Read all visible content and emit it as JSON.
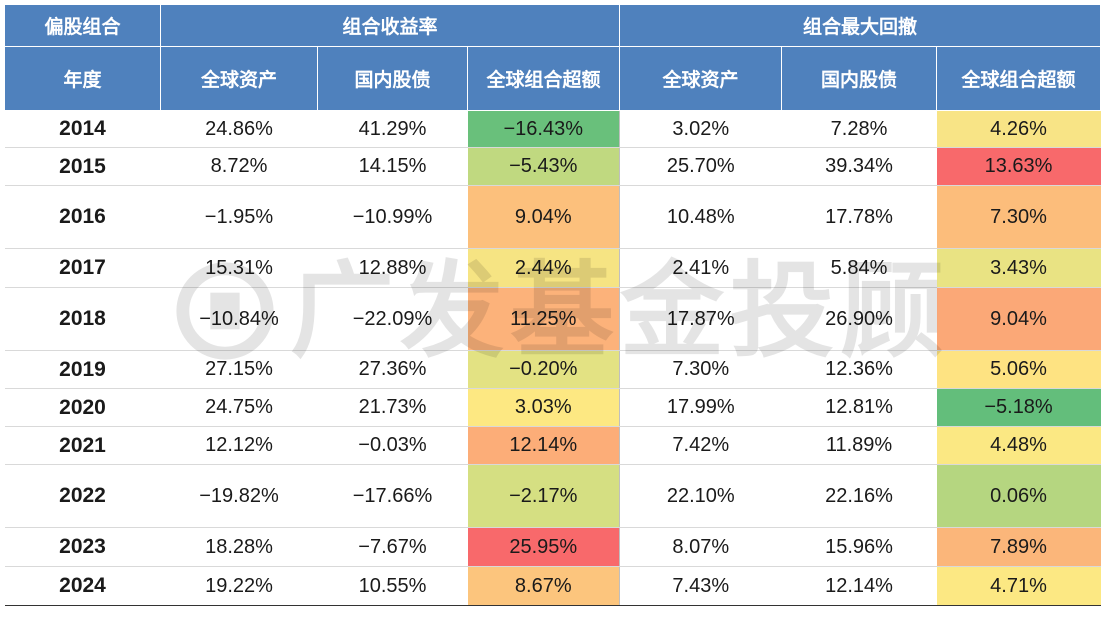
{
  "header": {
    "corner": "偏股组合",
    "group_return": "组合收益率",
    "group_drawdown": "组合最大回撤",
    "year_label": "年度",
    "columns": [
      "全球资产",
      "国内股债",
      "全球组合超额",
      "全球资产",
      "国内股债",
      "全球组合超额"
    ]
  },
  "watermark": {
    "text": "广发基金投顾",
    "icon": "gf-logo-icon"
  },
  "colors": {
    "header_bg": "#4f81bd",
    "scale_red": "#f8696b",
    "scale_orange": "#fbaa77",
    "scale_yellow": "#ffeb84",
    "scale_green": "#63be7b"
  },
  "rows": [
    {
      "year": "2014",
      "values": [
        "24.86%",
        "41.29%",
        "−16.43%",
        "3.02%",
        "7.28%",
        "4.26%"
      ],
      "excess_ret_color": "#69c07b",
      "excess_dd_color": "#f8e486"
    },
    {
      "year": "2015",
      "values": [
        "8.72%",
        "14.15%",
        "−5.43%",
        "25.70%",
        "39.34%",
        "13.63%"
      ],
      "excess_ret_color": "#c0d980",
      "excess_dd_color": "#f8696b"
    },
    {
      "year": "2016",
      "values": [
        "−1.95%",
        "−10.99%",
        "9.04%",
        "10.48%",
        "17.78%",
        "7.30%"
      ],
      "excess_ret_color": "#fcc07c",
      "excess_dd_color": "#fcbd7b"
    },
    {
      "year": "2017",
      "values": [
        "15.31%",
        "12.88%",
        "2.44%",
        "2.41%",
        "5.84%",
        "3.43%"
      ],
      "excess_ret_color": "#f6e483",
      "excess_dd_color": "#e9e383"
    },
    {
      "year": "2018",
      "values": [
        "−10.84%",
        "−22.09%",
        "11.25%",
        "17.87%",
        "26.90%",
        "9.04%"
      ],
      "excess_ret_color": "#fcb27a",
      "excess_dd_color": "#fba877"
    },
    {
      "year": "2019",
      "values": [
        "27.15%",
        "27.36%",
        "−0.20%",
        "7.30%",
        "12.36%",
        "5.06%"
      ],
      "excess_ret_color": "#e3e283",
      "excess_dd_color": "#fee382"
    },
    {
      "year": "2020",
      "values": [
        "24.75%",
        "21.73%",
        "3.03%",
        "17.99%",
        "12.81%",
        "−5.18%"
      ],
      "excess_ret_color": "#fde882",
      "excess_dd_color": "#63be7b"
    },
    {
      "year": "2021",
      "values": [
        "12.12%",
        "−0.03%",
        "12.14%",
        "7.42%",
        "11.89%",
        "4.48%"
      ],
      "excess_ret_color": "#fcad78",
      "excess_dd_color": "#fbe883"
    },
    {
      "year": "2022",
      "values": [
        "−19.82%",
        "−17.66%",
        "−2.17%",
        "22.10%",
        "22.16%",
        "0.06%"
      ],
      "excess_ret_color": "#d5df82",
      "excess_dd_color": "#b5d680"
    },
    {
      "year": "2023",
      "values": [
        "18.28%",
        "−7.67%",
        "25.95%",
        "8.07%",
        "15.96%",
        "7.89%"
      ],
      "excess_ret_color": "#f8696b",
      "excess_dd_color": "#fbb67a"
    },
    {
      "year": "2024",
      "values": [
        "19.22%",
        "10.55%",
        "8.67%",
        "7.43%",
        "12.14%",
        "4.71%"
      ],
      "excess_ret_color": "#fcc57d",
      "excess_dd_color": "#fce883"
    }
  ]
}
